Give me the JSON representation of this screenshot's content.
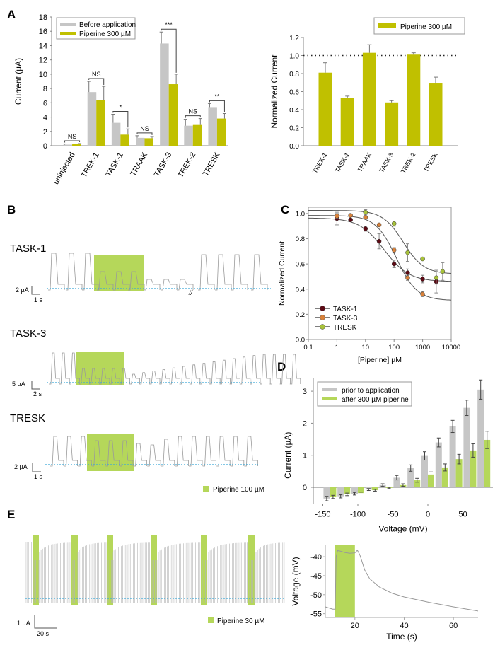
{
  "panel_labels": {
    "A": "A",
    "B": "B",
    "C": "C",
    "D": "D",
    "E": "E"
  },
  "colors": {
    "before": "#c6c6c6",
    "piperine_olive": "#c0c000",
    "piperine_light": "#b5d75a",
    "baseline": "#3aa8d8",
    "trace": "#9a9a9a",
    "task1": "#5c0a14",
    "task3": "#d9823a",
    "tresk": "#a8c23a",
    "fit": "#555555"
  },
  "chart_data": [
    {
      "id": "A-left",
      "type": "bar",
      "ylabel": "Current (µA)",
      "ylim": [
        0,
        18
      ],
      "yticks": [
        0,
        2,
        4,
        6,
        8,
        10,
        12,
        14,
        16,
        18
      ],
      "categories": [
        "uninjected",
        "TREK-1",
        "TASK-1",
        "TRAAK",
        "TASK-3",
        "TREK-2",
        "TRESK"
      ],
      "series": [
        {
          "name": "Before application",
          "values": [
            0.15,
            7.5,
            3.2,
            1.1,
            14.3,
            2.8,
            5.4
          ],
          "errors": [
            0.1,
            1.5,
            1.2,
            0.3,
            1.6,
            0.9,
            0.5
          ]
        },
        {
          "name": "Piperine 300 µM",
          "values": [
            0.2,
            6.4,
            1.55,
            1.05,
            8.6,
            2.9,
            3.8
          ],
          "errors": [
            0.1,
            1.9,
            0.8,
            0.25,
            1.4,
            0.9,
            0.7
          ]
        }
      ],
      "significance": [
        "NS",
        "NS",
        "*",
        "NS",
        "***",
        "NS",
        "**"
      ],
      "legend": [
        "Before application",
        "Piperine 300 µM"
      ],
      "legend_position": "top-left"
    },
    {
      "id": "A-right",
      "type": "bar",
      "ylabel": "Normalized Current",
      "ylim": [
        0,
        1.2
      ],
      "yticks": [
        "0.0",
        "0.2",
        "0.4",
        "0.6",
        "0.8",
        "1.0",
        "1.2"
      ],
      "categories": [
        "TREK-1",
        "TASK-1",
        "TRAAK",
        "TASK-3",
        "TREK-2",
        "TRESK"
      ],
      "series": [
        {
          "name": "Piperine 300 µM",
          "values": [
            0.81,
            0.53,
            1.03,
            0.48,
            1.01,
            0.69
          ],
          "errors": [
            0.11,
            0.02,
            0.09,
            0.02,
            0.02,
            0.07
          ]
        }
      ],
      "reference_line": 1.0,
      "legend": [
        "Piperine 300 µM"
      ],
      "legend_position": "top-right"
    },
    {
      "id": "C",
      "type": "scatter",
      "xlabel": "[Piperine] µM",
      "ylabel": "Normalized Current",
      "xscale": "log",
      "xlim": [
        0.1,
        10000
      ],
      "ylim": [
        0,
        1.05
      ],
      "xticks": [
        "0.1",
        "1",
        "10",
        "100",
        "1000",
        "10000"
      ],
      "yticks": [
        "0.0",
        "0.2",
        "0.4",
        "0.6",
        "0.8",
        "1.0"
      ],
      "series": [
        {
          "name": "TASK-1",
          "x": [
            1,
            3,
            10,
            30,
            100,
            300,
            1000,
            3000
          ],
          "y": [
            0.96,
            0.95,
            0.88,
            0.78,
            0.6,
            0.53,
            0.48,
            0.46
          ],
          "errors": [
            0.05,
            0.01,
            0.02,
            0.06,
            0.03,
            0.03,
            0.03,
            0.09
          ],
          "fit": {
            "top": 0.965,
            "bottom": 0.46,
            "ic50": 45,
            "hill": 1.0
          }
        },
        {
          "name": "TASK-3",
          "x": [
            1,
            3,
            10,
            30,
            100,
            300,
            1000
          ],
          "y": [
            0.98,
            0.985,
            0.97,
            0.91,
            0.71,
            0.49,
            0.36
          ],
          "errors": [
            0.02,
            0.01,
            0.01,
            0.01,
            0.02,
            0.02,
            0.02
          ],
          "fit": {
            "top": 0.985,
            "bottom": 0.31,
            "ic50": 120,
            "hill": 1.2
          }
        },
        {
          "name": "TRESK",
          "x": [
            10,
            100,
            300,
            1000,
            3000,
            5000
          ],
          "y": [
            1.01,
            0.92,
            0.69,
            0.64,
            0.49,
            0.54
          ],
          "errors": [
            0.02,
            0.02,
            0.07,
            0.01,
            0.05,
            0.07
          ],
          "fit": {
            "top": 1.025,
            "bottom": 0.52,
            "ic50": 210,
            "hill": 1.2
          }
        }
      ],
      "legend": [
        "TASK-1",
        "TASK-3",
        "TRESK"
      ],
      "legend_position": "bottom-left"
    },
    {
      "id": "D",
      "type": "bar",
      "xlabel": "Voltage (mV)",
      "ylabel": "Current (µA)",
      "xlim": [
        -155,
        90
      ],
      "ylim": [
        -0.5,
        3.4
      ],
      "xticks": [
        "-150",
        "-100",
        "-50",
        "0",
        "50"
      ],
      "yticks": [
        "0",
        "1",
        "2",
        "3"
      ],
      "x": [
        -140,
        -120,
        -100,
        -80,
        -60,
        -40,
        -20,
        0,
        20,
        40,
        60,
        80
      ],
      "series": [
        {
          "name": "prior to application",
          "values": [
            -0.35,
            -0.28,
            -0.2,
            -0.07,
            0.07,
            0.3,
            0.6,
            0.98,
            1.4,
            1.9,
            2.48,
            3.05
          ],
          "errors": [
            0.07,
            0.05,
            0.04,
            0.03,
            0.04,
            0.07,
            0.1,
            0.13,
            0.14,
            0.19,
            0.24,
            0.3
          ]
        },
        {
          "name": "after 300 µM piperine",
          "values": [
            -0.3,
            -0.22,
            -0.18,
            -0.09,
            -0.02,
            0.07,
            0.22,
            0.4,
            0.62,
            0.88,
            1.15,
            1.48
          ],
          "errors": [
            0.05,
            0.04,
            0.03,
            0.03,
            0.02,
            0.04,
            0.06,
            0.08,
            0.11,
            0.15,
            0.21,
            0.27
          ]
        }
      ],
      "legend": [
        "prior to application",
        "after 300 µM piperine"
      ],
      "legend_position": "top-left"
    },
    {
      "id": "E-right",
      "type": "line",
      "xlabel": "Time (s)",
      "ylabel": "Voltage (mV)",
      "xlim": [
        8,
        70
      ],
      "ylim": [
        -56,
        -37
      ],
      "xticks": [
        "20",
        "40",
        "60"
      ],
      "yticks": [
        "-40",
        "-45",
        "-50",
        "-55"
      ],
      "application_window": [
        12,
        20
      ],
      "series": [
        {
          "name": "membrane potential",
          "x": [
            8,
            11,
            12,
            12.4,
            13,
            14,
            16,
            18,
            20,
            21,
            22,
            24,
            26,
            30,
            35,
            40,
            50,
            60,
            70
          ],
          "y": [
            -53.2,
            -53.8,
            -53.8,
            -40,
            -38.4,
            -38.5,
            -38.9,
            -39.1,
            -39.0,
            -38.3,
            -39.5,
            -43.5,
            -45.8,
            -48.0,
            -49.6,
            -50.6,
            -52.0,
            -53.2,
            -54.3
          ]
        }
      ]
    }
  ],
  "panel_B": {
    "traces": [
      {
        "label": "TASK-1",
        "scale_y": "2 µA",
        "scale_x": "1 s",
        "break_mark": "//"
      },
      {
        "label": "TASK-3",
        "scale_y": "5 µA",
        "scale_x": "2 s"
      },
      {
        "label": "TRESK",
        "scale_y": "2 µA",
        "scale_x": "1 s"
      }
    ],
    "legend": "Piperine 100 µM"
  },
  "panel_E": {
    "scale_y": "1 µA",
    "scale_x": "20 s",
    "legend": "Piperine 30 µM"
  }
}
